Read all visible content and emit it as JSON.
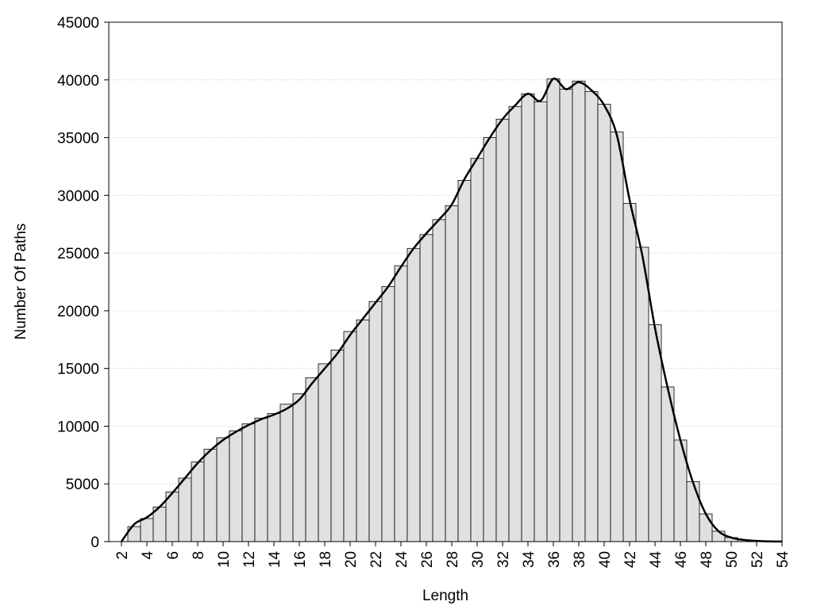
{
  "chart_data": {
    "type": "histogram",
    "xlabel": "Length",
    "ylabel": "Number Of Paths",
    "bins": [
      2.5,
      3.5,
      4.5,
      5.5,
      6.5,
      7.5,
      8.5,
      9.5,
      10.5,
      11.5,
      12.5,
      13.5,
      14.5,
      15.5,
      16.5,
      17.5,
      18.5,
      19.5,
      20.5,
      21.5,
      22.5,
      23.5,
      24.5,
      25.5,
      26.5,
      27.5,
      28.5,
      29.5,
      30.5,
      31.5,
      32.5,
      33.5,
      34.5,
      35.5,
      36.5,
      37.5,
      38.5,
      39.5,
      40.5,
      41.5,
      42.5,
      43.5,
      44.5,
      45.5,
      46.5,
      47.5,
      48.5,
      49.5,
      50.5,
      51.5,
      52.5,
      53.5
    ],
    "values": [
      1300,
      2000,
      3000,
      4300,
      5500,
      6900,
      8000,
      9000,
      9600,
      10200,
      10700,
      11100,
      11900,
      12800,
      14200,
      15400,
      16600,
      18200,
      19200,
      20800,
      22100,
      23900,
      25400,
      26600,
      27900,
      29100,
      31300,
      33200,
      35000,
      36600,
      37700,
      38800,
      38100,
      40100,
      39200,
      39900,
      39000,
      37900,
      35500,
      29300,
      25500,
      18800,
      13400,
      8800,
      5200,
      2400,
      900,
      350,
      150,
      60,
      30
    ],
    "color": "#e0e0e0",
    "line": {
      "x": [
        2,
        3,
        4,
        5,
        6,
        7,
        8,
        9,
        10,
        11,
        12,
        13,
        14,
        15,
        16,
        17,
        18,
        19,
        20,
        21,
        22,
        23,
        24,
        25,
        26,
        27,
        28,
        29,
        30,
        31,
        32,
        33,
        34,
        35,
        36,
        37,
        38,
        39,
        40,
        41,
        42,
        43,
        44,
        45,
        46,
        47,
        48,
        49,
        50,
        51,
        52,
        53,
        54
      ],
      "values": [
        0,
        1500,
        2100,
        3000,
        4200,
        5500,
        6800,
        7900,
        8800,
        9500,
        10100,
        10600,
        11000,
        11500,
        12300,
        13700,
        15000,
        16300,
        17900,
        19300,
        20700,
        22100,
        23800,
        25400,
        26700,
        27900,
        29200,
        31400,
        33200,
        35000,
        36600,
        37800,
        38800,
        38200,
        40100,
        39200,
        39800,
        39100,
        37800,
        35200,
        29600,
        24800,
        18500,
        13300,
        8800,
        5100,
        2400,
        900,
        350,
        150,
        60,
        20,
        10
      ],
      "color": "#000000"
    },
    "xlim": [
      1,
      54
    ],
    "ylim": [
      0,
      45000
    ],
    "xticks": [
      2,
      4,
      6,
      8,
      10,
      12,
      14,
      16,
      18,
      20,
      22,
      24,
      26,
      28,
      30,
      32,
      34,
      36,
      38,
      40,
      42,
      44,
      46,
      48,
      50,
      52,
      54
    ],
    "yticks": [
      0,
      5000,
      10000,
      15000,
      20000,
      25000,
      30000,
      35000,
      40000,
      45000
    ],
    "grid": true
  }
}
